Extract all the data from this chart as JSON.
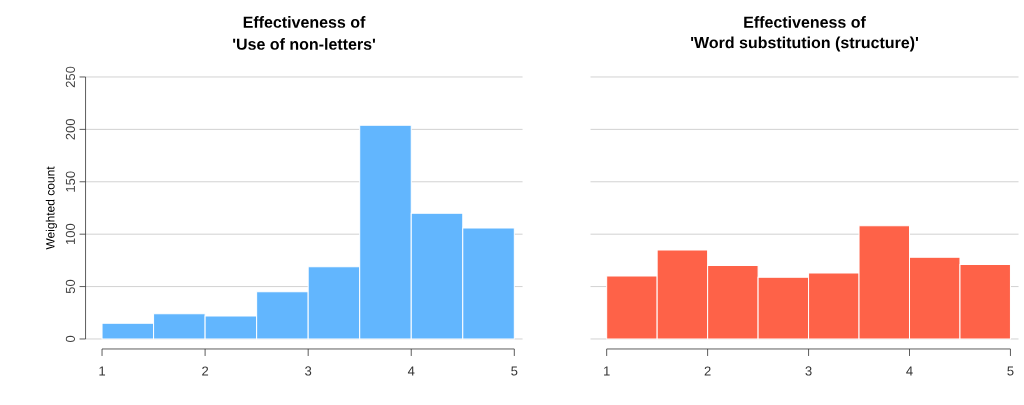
{
  "chart_data": [
    {
      "type": "histogram",
      "title": "Effectiveness of",
      "subtitle": "'Use of non-letters'",
      "ylabel": "Weighted count",
      "bins": [
        1,
        1.5,
        2,
        2.5,
        3,
        3.5,
        4,
        4.5,
        5
      ],
      "values": [
        15,
        24,
        22,
        45,
        69,
        204,
        120,
        106
      ],
      "color": "#62b6fe",
      "xlim": [
        0.84,
        5.08
      ],
      "ylim": [
        0,
        250
      ],
      "xticks": [
        1,
        2,
        3,
        4,
        5
      ],
      "yticks": [
        0,
        50,
        100,
        150,
        200,
        250
      ],
      "grid": "y"
    },
    {
      "type": "histogram",
      "title": "Effectiveness of",
      "subtitle": "'Word substitution (structure)'",
      "bins": [
        1,
        1.5,
        2,
        2.5,
        3,
        3.5,
        4,
        4.5,
        5
      ],
      "values": [
        60,
        85,
        70,
        59,
        63,
        108,
        78,
        71
      ],
      "color": "#fe6248",
      "xlim": [
        0.84,
        5.08
      ],
      "ylim": [
        0,
        250
      ],
      "xticks": [
        1,
        2,
        3,
        4,
        5
      ],
      "yticks": [
        0,
        50,
        100,
        150,
        200,
        250
      ],
      "grid": "y",
      "tick_labels": "x"
    }
  ]
}
